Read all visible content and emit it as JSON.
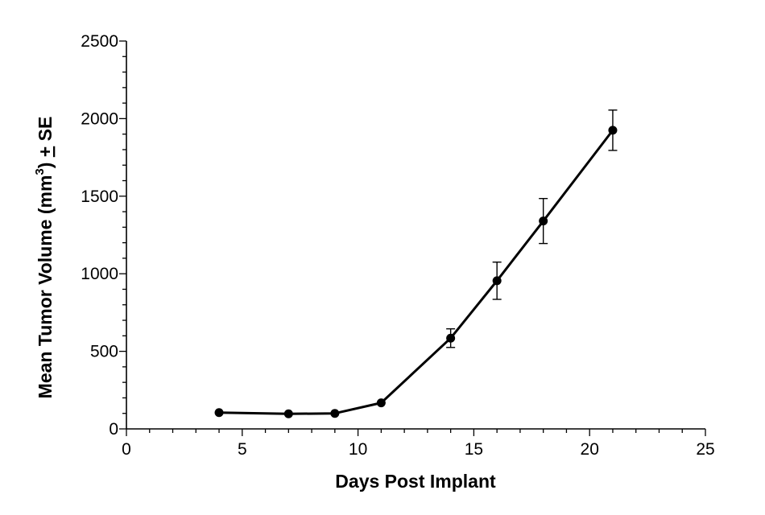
{
  "chart_data": {
    "type": "line",
    "title": "",
    "xlabel": "Days Post Implant",
    "ylabel": {
      "main": "Mean Tumor Volume (mm",
      "superscript": "3",
      "suffix": ") ",
      "error_term_symbol": "+",
      "error_term_label": " SE"
    },
    "xlim": [
      0,
      25
    ],
    "ylim": [
      0,
      2500
    ],
    "x_ticks": [
      0,
      5,
      10,
      15,
      20,
      25
    ],
    "y_ticks": [
      0,
      500,
      1000,
      1500,
      2000,
      2500
    ],
    "grid": false,
    "series": [
      {
        "x": [
          4,
          7,
          9,
          11,
          14,
          16,
          18,
          21
        ],
        "y": [
          105,
          97,
          100,
          168,
          585,
          955,
          1340,
          1925
        ],
        "error": [
          0,
          0,
          0,
          0,
          60,
          120,
          145,
          130
        ],
        "color": "#000000",
        "marker": "circle"
      }
    ]
  }
}
